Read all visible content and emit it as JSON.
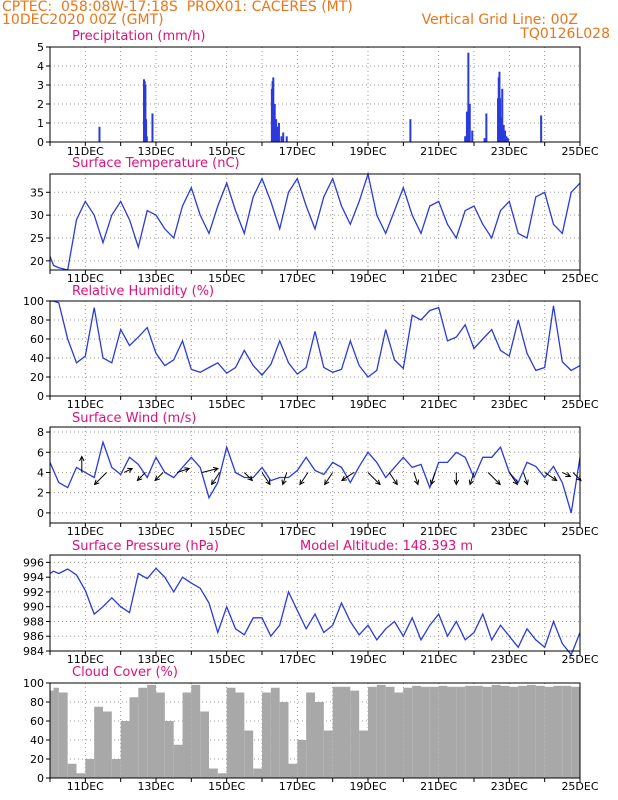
{
  "header": {
    "line1_left": "CPTEC:  058:08W-17:18S  PROX01: CACERES (MT)",
    "line2_left": "10DEC2020 00Z (GMT)",
    "line2_right": "Vertical Grid Line: 00Z",
    "line3_right": "TQ0126L028"
  },
  "colors": {
    "header": "#e8761a",
    "panel_title": "#e0107a",
    "series": "#2a3adb",
    "cloud": "#a8a8a8",
    "wind_arrow": "#000000"
  },
  "chart_data": [
    {
      "type": "bar",
      "title": "Precipitation (mm/h)",
      "ylim": [
        0,
        5
      ],
      "yticks": [
        "0",
        "1",
        "2",
        "3",
        "4",
        "5"
      ],
      "xlabels": [
        "11DEC",
        "13DEC",
        "15DEC",
        "17DEC",
        "19DEC",
        "21DEC",
        "23DEC",
        "25DEC"
      ],
      "grid": true,
      "x": [
        1.4,
        2.66,
        2.68,
        2.7,
        2.72,
        2.74,
        2.9,
        6.28,
        6.3,
        6.32,
        6.36,
        6.4,
        6.44,
        6.48,
        6.55,
        6.6,
        6.7,
        10.2,
        11.75,
        11.8,
        11.84,
        11.88,
        11.95,
        12.3,
        12.35,
        12.68,
        12.7,
        12.72,
        12.74,
        12.76,
        12.8,
        12.84,
        12.88,
        12.92,
        12.96,
        13.9
      ],
      "values": [
        0.8,
        3.3,
        3.2,
        3.0,
        1.2,
        0.3,
        1.5,
        2.8,
        3.2,
        3.4,
        2.0,
        1.2,
        0.8,
        1.0,
        0.3,
        0.5,
        0.3,
        1.2,
        0.3,
        1.6,
        4.7,
        2.0,
        0.6,
        0.2,
        1.5,
        2.3,
        3.4,
        3.7,
        2.3,
        1.3,
        2.8,
        0.9,
        0.6,
        0.3,
        0.2,
        1.4
      ]
    },
    {
      "type": "line",
      "title": "Surface Temperature (nC)",
      "ylim": [
        18,
        39
      ],
      "yticks": [
        "20",
        "25",
        "30",
        "35"
      ],
      "xlabels": [
        "11DEC",
        "13DEC",
        "15DEC",
        "17DEC",
        "19DEC",
        "21DEC",
        "23DEC",
        "25DEC"
      ],
      "grid": true,
      "x": [
        0,
        0.1,
        0.25,
        0.5,
        0.75,
        1.0,
        1.25,
        1.5,
        1.75,
        2.0,
        2.25,
        2.5,
        2.75,
        3.0,
        3.25,
        3.5,
        3.75,
        4.0,
        4.25,
        4.5,
        4.75,
        5.0,
        5.25,
        5.5,
        5.75,
        6.0,
        6.25,
        6.5,
        6.75,
        7.0,
        7.25,
        7.5,
        7.75,
        8.0,
        8.25,
        8.5,
        8.75,
        9.0,
        9.25,
        9.5,
        9.75,
        10.0,
        10.25,
        10.5,
        10.75,
        11.0,
        11.25,
        11.5,
        11.75,
        12.0,
        12.25,
        12.5,
        12.75,
        13.0,
        13.25,
        13.5,
        13.75,
        14.0,
        14.25,
        14.5,
        14.75,
        15.0
      ],
      "values": [
        21,
        19,
        18.5,
        18,
        29,
        33,
        30,
        24,
        30,
        33,
        29,
        23,
        31,
        30,
        27,
        25,
        32,
        36,
        30,
        26,
        32,
        37,
        31,
        26,
        34,
        38,
        33,
        27,
        35,
        38,
        32,
        27,
        34,
        38,
        32,
        28,
        33,
        39,
        30,
        26,
        31,
        36,
        30,
        26,
        32,
        33,
        28,
        25,
        31,
        32,
        28,
        25,
        31,
        33,
        26,
        25,
        34,
        35,
        28,
        26,
        35,
        37
      ],
      "connect": [
        false,
        true,
        true,
        true,
        true,
        true,
        true,
        true,
        true,
        true,
        true,
        true,
        true,
        true,
        true,
        true,
        true,
        true,
        true,
        true,
        true,
        true,
        true,
        true,
        true,
        true,
        true,
        true,
        true,
        true,
        true,
        true,
        true,
        true,
        true,
        true,
        true,
        true,
        true,
        true,
        true,
        true,
        true,
        true,
        true,
        true,
        true,
        true,
        true,
        true,
        true,
        true,
        true,
        true,
        true,
        true,
        true,
        true,
        true,
        true,
        true,
        true
      ]
    },
    {
      "type": "line",
      "title": "Relative Humidity (%)",
      "ylim": [
        0,
        100
      ],
      "yticks": [
        "0",
        "20",
        "40",
        "60",
        "80",
        "100"
      ],
      "xlabels": [
        "11DEC",
        "13DEC",
        "15DEC",
        "17DEC",
        "19DEC",
        "21DEC",
        "23DEC",
        "25DEC"
      ],
      "grid": true,
      "x": [
        0,
        0.1,
        0.25,
        0.5,
        0.75,
        1.0,
        1.25,
        1.5,
        1.75,
        2.0,
        2.25,
        2.5,
        2.75,
        3.0,
        3.25,
        3.5,
        3.75,
        4.0,
        4.25,
        4.5,
        4.75,
        5.0,
        5.25,
        5.5,
        5.75,
        6.0,
        6.25,
        6.5,
        6.75,
        7.0,
        7.25,
        7.5,
        7.75,
        8.0,
        8.25,
        8.5,
        8.75,
        9.0,
        9.25,
        9.5,
        9.75,
        10.0,
        10.25,
        10.5,
        10.75,
        11.0,
        11.25,
        11.5,
        11.75,
        12.0,
        12.25,
        12.5,
        12.75,
        13.0,
        13.25,
        13.5,
        13.75,
        14.0,
        14.25,
        14.5,
        14.75,
        15.0
      ],
      "values": [
        100,
        100,
        98,
        60,
        35,
        42,
        93,
        40,
        35,
        70,
        53,
        62,
        72,
        45,
        32,
        38,
        58,
        28,
        25,
        30,
        35,
        24,
        30,
        48,
        32,
        22,
        33,
        58,
        35,
        23,
        30,
        68,
        30,
        25,
        28,
        58,
        32,
        20,
        27,
        70,
        38,
        29,
        85,
        80,
        90,
        93,
        58,
        62,
        75,
        50,
        60,
        70,
        48,
        42,
        80,
        45,
        27,
        30,
        95,
        36,
        27,
        32
      ],
      "connect": [
        false,
        true,
        true,
        true,
        true,
        true,
        true,
        true,
        true,
        true,
        true,
        true,
        true,
        true,
        true,
        true,
        true,
        true,
        true,
        true,
        true,
        true,
        true,
        true,
        true,
        true,
        true,
        true,
        true,
        true,
        true,
        true,
        true,
        true,
        true,
        true,
        true,
        true,
        true,
        true,
        true,
        true,
        true,
        true,
        true,
        true,
        true,
        true,
        true,
        true,
        true,
        true,
        true,
        true,
        true,
        true,
        true,
        true,
        true,
        true,
        true,
        true
      ]
    },
    {
      "type": "line",
      "title": "Surface Wind (m/s)",
      "ylim": [
        -1,
        8.5
      ],
      "yticks": [
        "0",
        "2",
        "4",
        "6",
        "8"
      ],
      "xlabels": [
        "11DEC",
        "13DEC",
        "15DEC",
        "17DEC",
        "19DEC",
        "21DEC",
        "23DEC",
        "25DEC"
      ],
      "grid": true,
      "x": [
        0,
        0.1,
        0.25,
        0.5,
        0.75,
        1.0,
        1.25,
        1.5,
        1.75,
        2.0,
        2.25,
        2.5,
        2.75,
        3.0,
        3.25,
        3.5,
        3.75,
        4.0,
        4.25,
        4.5,
        4.75,
        5.0,
        5.25,
        5.5,
        5.75,
        6.0,
        6.25,
        6.5,
        6.75,
        7.0,
        7.25,
        7.5,
        7.75,
        8.0,
        8.25,
        8.5,
        8.75,
        9.0,
        9.25,
        9.5,
        9.75,
        10.0,
        10.25,
        10.5,
        10.75,
        11.0,
        11.25,
        11.5,
        11.75,
        12.0,
        12.25,
        12.5,
        12.75,
        13.0,
        13.25,
        13.5,
        13.75,
        14.0,
        14.25,
        14.5,
        14.75,
        15.0
      ],
      "values": [
        5,
        4.2,
        3,
        2.5,
        4.5,
        4,
        3.5,
        7,
        4.5,
        3.8,
        5.5,
        4.8,
        3.5,
        5.5,
        4,
        3.5,
        4.5,
        5.5,
        4.5,
        1.5,
        3,
        6.5,
        4,
        3.5,
        3.5,
        4.5,
        3.2,
        3.5,
        3.5,
        4.2,
        5.5,
        4.2,
        3.8,
        5,
        4.5,
        3,
        4.6,
        6,
        5,
        3.5,
        4.5,
        5.5,
        4.5,
        4.8,
        2.5,
        5,
        5,
        6,
        5.5,
        3.5,
        5.5,
        5.5,
        6.5,
        4,
        3,
        5,
        4.6,
        3.5,
        4.6,
        3,
        0,
        5.5
      ],
      "connect": [
        false,
        true,
        true,
        true,
        true,
        true,
        true,
        true,
        true,
        true,
        true,
        true,
        true,
        true,
        true,
        true,
        true,
        true,
        true,
        true,
        true,
        true,
        true,
        true,
        true,
        true,
        true,
        true,
        true,
        true,
        true,
        true,
        true,
        true,
        true,
        true,
        true,
        true,
        true,
        true,
        true,
        true,
        true,
        true,
        true,
        true,
        true,
        true,
        true,
        true,
        true,
        true,
        true,
        true,
        true,
        true,
        true,
        true,
        true,
        true,
        true,
        true
      ],
      "wind_vectors_x": [
        0.9,
        1.6,
        2.1,
        2.7,
        3.2,
        3.6,
        4.3,
        4.8,
        5.5,
        6.0,
        6.7,
        7.3,
        8.0,
        8.6,
        9.0,
        9.6,
        10.3,
        10.9,
        11.5,
        12.0,
        12.4,
        13.0,
        13.4,
        14.0,
        14.5,
        14.8
      ],
      "wind_vectors_u": [
        0,
        -3,
        2,
        -2,
        -2,
        3,
        4,
        -2,
        2,
        2,
        -1,
        -2,
        -2,
        -3,
        3,
        2,
        1,
        -1,
        0,
        -1,
        3,
        2,
        1,
        3,
        2,
        2
      ],
      "wind_vectors_v": [
        4,
        -3,
        1,
        -2,
        -2,
        1,
        1,
        -3,
        -2,
        -3,
        -3,
        -3,
        -3,
        -2,
        -3,
        -3,
        -3,
        -3,
        -3,
        -3,
        -3,
        -3,
        -3,
        -2,
        -1,
        -2
      ]
    },
    {
      "type": "line",
      "title": "Surface Pressure (hPa)",
      "subtitle": "Model Altitude: 148.393 m",
      "ylim": [
        984,
        997
      ],
      "yticks": [
        "984",
        "986",
        "988",
        "990",
        "992",
        "994",
        "996"
      ],
      "xlabels": [
        "11DEC",
        "13DEC",
        "15DEC",
        "17DEC",
        "19DEC",
        "21DEC",
        "23DEC",
        "25DEC"
      ],
      "grid": true,
      "x": [
        0,
        0.1,
        0.25,
        0.5,
        0.75,
        1.0,
        1.25,
        1.5,
        1.75,
        2.0,
        2.25,
        2.5,
        2.75,
        3.0,
        3.25,
        3.5,
        3.75,
        4.0,
        4.25,
        4.5,
        4.75,
        5.0,
        5.25,
        5.5,
        5.75,
        6.0,
        6.25,
        6.5,
        6.75,
        7.0,
        7.25,
        7.5,
        7.75,
        8.0,
        8.25,
        8.5,
        8.75,
        9.0,
        9.25,
        9.5,
        9.75,
        10.0,
        10.25,
        10.5,
        10.75,
        11.0,
        11.25,
        11.5,
        11.75,
        12.0,
        12.25,
        12.5,
        12.75,
        13.0,
        13.25,
        13.5,
        13.75,
        14.0,
        14.25,
        14.5,
        14.75,
        15.0
      ],
      "values": [
        994.5,
        994.8,
        994.5,
        995.1,
        994.3,
        992.2,
        989.0,
        990.0,
        991.2,
        990.0,
        989.2,
        994.5,
        993.8,
        995.2,
        994.0,
        992.0,
        994.0,
        993.2,
        992.5,
        990.5,
        986.5,
        990.0,
        987.0,
        986.2,
        988.5,
        988.5,
        986.0,
        987.5,
        992.0,
        989.5,
        987.0,
        989.0,
        986.5,
        987.5,
        990.5,
        988.0,
        986.2,
        987.5,
        985.5,
        987.0,
        988.0,
        986.0,
        988.5,
        985.5,
        987.5,
        989.0,
        986.0,
        988.0,
        985.5,
        986.5,
        989.0,
        985.5,
        987.5,
        986.0,
        984.5,
        987.0,
        985.5,
        984.5,
        988.0,
        985.0,
        983.5,
        986.5
      ],
      "connect": [
        false,
        true,
        true,
        true,
        true,
        true,
        true,
        true,
        true,
        true,
        true,
        true,
        true,
        true,
        true,
        true,
        true,
        true,
        true,
        true,
        true,
        true,
        true,
        true,
        true,
        true,
        true,
        true,
        true,
        true,
        true,
        true,
        true,
        true,
        true,
        true,
        true,
        true,
        true,
        true,
        true,
        true,
        true,
        true,
        true,
        true,
        true,
        true,
        true,
        true,
        true,
        true,
        true,
        true,
        true,
        true,
        true,
        true,
        true,
        true,
        true,
        true
      ]
    },
    {
      "type": "area",
      "title": "Cloud Cover (%)",
      "ylim": [
        0,
        100
      ],
      "yticks": [
        "0",
        "20",
        "40",
        "60",
        "80",
        "100"
      ],
      "xlabels": [
        "11DEC",
        "13DEC",
        "15DEC",
        "17DEC",
        "19DEC",
        "21DEC",
        "23DEC",
        "25DEC"
      ],
      "grid": true,
      "x": [
        0,
        0.1,
        0.25,
        0.5,
        0.75,
        1.0,
        1.25,
        1.5,
        1.75,
        2.0,
        2.25,
        2.5,
        2.75,
        3.0,
        3.25,
        3.5,
        3.75,
        4.0,
        4.25,
        4.5,
        4.75,
        5.0,
        5.25,
        5.5,
        5.75,
        6.0,
        6.25,
        6.5,
        6.75,
        7.0,
        7.25,
        7.5,
        7.75,
        8.0,
        8.25,
        8.5,
        8.75,
        9.0,
        9.25,
        9.5,
        9.75,
        10.0,
        10.25,
        10.5,
        10.75,
        11.0,
        11.25,
        11.5,
        11.75,
        12.0,
        12.25,
        12.5,
        12.75,
        13.0,
        13.25,
        13.5,
        13.75,
        14.0,
        14.25,
        14.5,
        14.75,
        15.0
      ],
      "values": [
        92,
        95,
        90,
        15,
        5,
        20,
        75,
        70,
        20,
        60,
        85,
        95,
        98,
        90,
        60,
        35,
        90,
        98,
        70,
        10,
        5,
        95,
        90,
        50,
        10,
        90,
        95,
        80,
        15,
        40,
        90,
        80,
        50,
        96,
        96,
        92,
        50,
        96,
        98,
        96,
        90,
        95,
        97,
        96,
        96,
        97,
        96,
        96,
        97,
        97,
        96,
        98,
        97,
        96,
        97,
        98,
        97,
        96,
        97,
        97,
        96,
        97
      ]
    }
  ]
}
